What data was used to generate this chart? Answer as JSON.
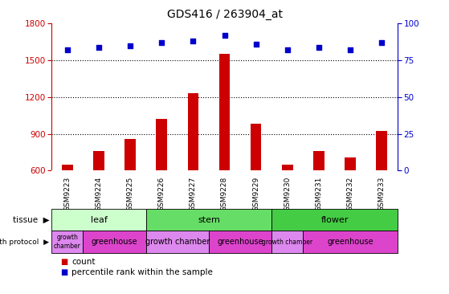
{
  "title": "GDS416 / 263904_at",
  "samples": [
    "GSM9223",
    "GSM9224",
    "GSM9225",
    "GSM9226",
    "GSM9227",
    "GSM9228",
    "GSM9229",
    "GSM9230",
    "GSM9231",
    "GSM9232",
    "GSM9233"
  ],
  "counts": [
    650,
    760,
    855,
    1020,
    1230,
    1555,
    980,
    650,
    760,
    710,
    920
  ],
  "percentiles": [
    82,
    84,
    85,
    87,
    88,
    92,
    86,
    82,
    84,
    82,
    87
  ],
  "ylim_left": [
    600,
    1800
  ],
  "ylim_right": [
    0,
    100
  ],
  "yticks_left": [
    600,
    900,
    1200,
    1500,
    1800
  ],
  "yticks_right": [
    0,
    25,
    50,
    75,
    100
  ],
  "bar_color": "#cc0000",
  "scatter_color": "#0000cc",
  "tissue_groups": [
    {
      "label": "leaf",
      "start": 0,
      "end": 3,
      "color": "#ccffcc"
    },
    {
      "label": "stem",
      "start": 3,
      "end": 7,
      "color": "#66dd66"
    },
    {
      "label": "flower",
      "start": 7,
      "end": 11,
      "color": "#44cc44"
    }
  ],
  "protocol_groups": [
    {
      "label": "growth\nchamber",
      "start": 0,
      "end": 1,
      "color": "#dd88ee"
    },
    {
      "label": "greenhouse",
      "start": 1,
      "end": 3,
      "color": "#dd44cc"
    },
    {
      "label": "growth chamber",
      "start": 3,
      "end": 5,
      "color": "#dd88ee"
    },
    {
      "label": "greenhouse",
      "start": 5,
      "end": 7,
      "color": "#dd44cc"
    },
    {
      "label": "growth chamber",
      "start": 7,
      "end": 8,
      "color": "#dd88ee"
    },
    {
      "label": "greenhouse",
      "start": 8,
      "end": 11,
      "color": "#dd44cc"
    }
  ],
  "dotted_gridlines": [
    900,
    1200,
    1500
  ],
  "legend_count_color": "#cc0000",
  "legend_percentile_color": "#0000cc",
  "left_axis_color": "#cc0000",
  "right_axis_color": "#0000cc",
  "xtick_bg_color": "#cccccc",
  "plot_bg_color": "#ffffff",
  "bar_width": 0.35
}
